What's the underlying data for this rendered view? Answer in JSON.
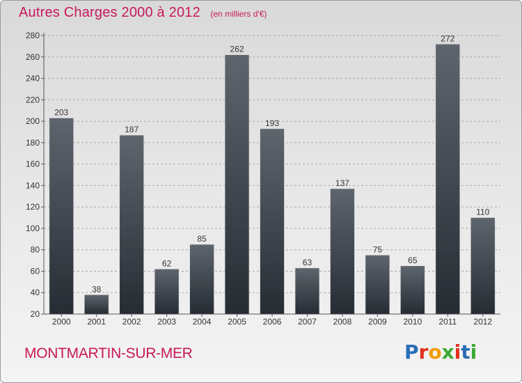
{
  "header": {
    "title": "Autres Charges 2000 à 2012",
    "subtitle": "(en milliers d'€)"
  },
  "footer": {
    "commune": "MONTMARTIN-SUR-MER",
    "logo_text": "Proxiti",
    "logo_colors": [
      "#2a6db5",
      "#e0301e",
      "#f29b00",
      "#3aa935",
      "#e0301e",
      "#2a6db5",
      "#3aa935"
    ]
  },
  "colors": {
    "title": "#c8185a",
    "bar_top": "#5f656d",
    "bar_bottom": "#262c33",
    "grid": "#a8a8a8"
  },
  "chart_data": {
    "type": "bar",
    "title": "Autres Charges 2000 à 2012",
    "subtitle": "(en milliers d'€)",
    "categories": [
      "2000",
      "2001",
      "2002",
      "2003",
      "2004",
      "2005",
      "2006",
      "2007",
      "2008",
      "2009",
      "2010",
      "2011",
      "2012"
    ],
    "values": [
      203,
      38,
      187,
      62,
      85,
      262,
      193,
      63,
      137,
      75,
      65,
      272,
      110
    ],
    "ylim": [
      20,
      280
    ],
    "yticks": [
      20,
      40,
      60,
      80,
      100,
      120,
      140,
      160,
      180,
      200,
      220,
      240,
      260,
      280
    ],
    "grid": true,
    "data_labels": true
  }
}
